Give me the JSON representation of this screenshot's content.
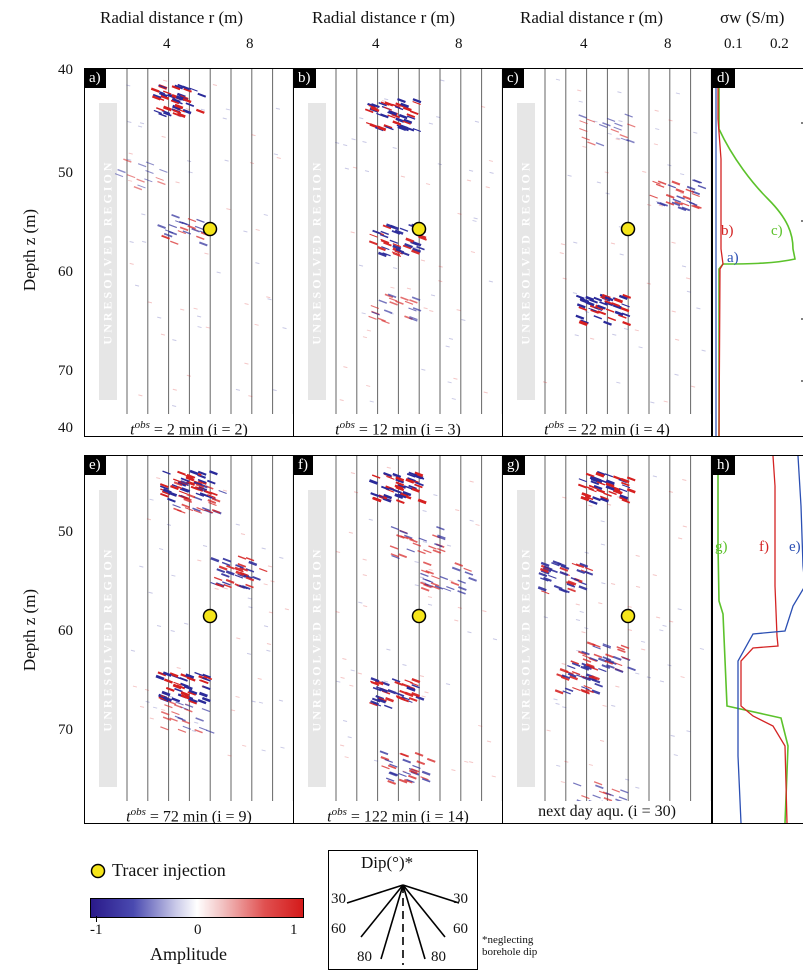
{
  "header": {
    "col_labels": [
      "Radial distance r (m)",
      "Radial distance r (m)",
      "Radial distance r (m)"
    ],
    "x_ticks": [
      "4",
      "8"
    ],
    "sigma_label": "σw (S/m)",
    "sigma_ticks": [
      "0.1",
      "0.2"
    ]
  },
  "axes": {
    "depth_label": "Depth z (m)",
    "depth_ticks_top": [
      "40",
      "50",
      "60",
      "70"
    ],
    "depth_ticks_bottom": [
      "40",
      "50",
      "60",
      "70"
    ]
  },
  "unresolved_label": "UNRESOLVED REGION",
  "panels": [
    {
      "id": "a)",
      "caption_t": "t",
      "caption_sup": "obs",
      "caption_rest": " = 2 min (i = 2)"
    },
    {
      "id": "b)",
      "caption_t": "t",
      "caption_sup": "obs",
      "caption_rest": " = 12 min (i = 3)"
    },
    {
      "id": "c)",
      "caption_t": "t",
      "caption_sup": "obs",
      "caption_rest": " = 22 min (i = 4)"
    },
    {
      "id": "e)",
      "caption_t": "t",
      "caption_sup": "obs",
      "caption_rest": " = 72 min (i = 9)"
    },
    {
      "id": "f)",
      "caption_t": "t",
      "caption_sup": "obs",
      "caption_rest": " = 122 min (i = 14)"
    },
    {
      "id": "g)",
      "caption_t": "",
      "caption_sup": "",
      "caption_rest": "next day aqu. (i = 30)"
    }
  ],
  "profile_panels": [
    {
      "id": "d)",
      "labels": [
        "b)",
        "c)",
        "a)"
      ]
    },
    {
      "id": "h)",
      "labels": [
        "g)",
        "f)",
        "e)"
      ]
    }
  ],
  "legend": {
    "tracer": "Tracer injection",
    "amplitude_label": "Amplitude",
    "amplitude_ticks": [
      "-1",
      "0",
      "1"
    ]
  },
  "dip": {
    "title": "Dip(°)*",
    "angles_left": [
      "30",
      "60",
      "80"
    ],
    "angles_right": [
      "30",
      "60",
      "80"
    ],
    "note_line1": "*neglecting",
    "note_line2": "borehole dip"
  },
  "colors": {
    "positive": "#d62020",
    "negative": "#2a2a9a",
    "tracer": "#f5e51a",
    "curve_a": "#2b4fb3",
    "curve_b": "#d42424",
    "curve_c": "#5cc22b"
  }
}
